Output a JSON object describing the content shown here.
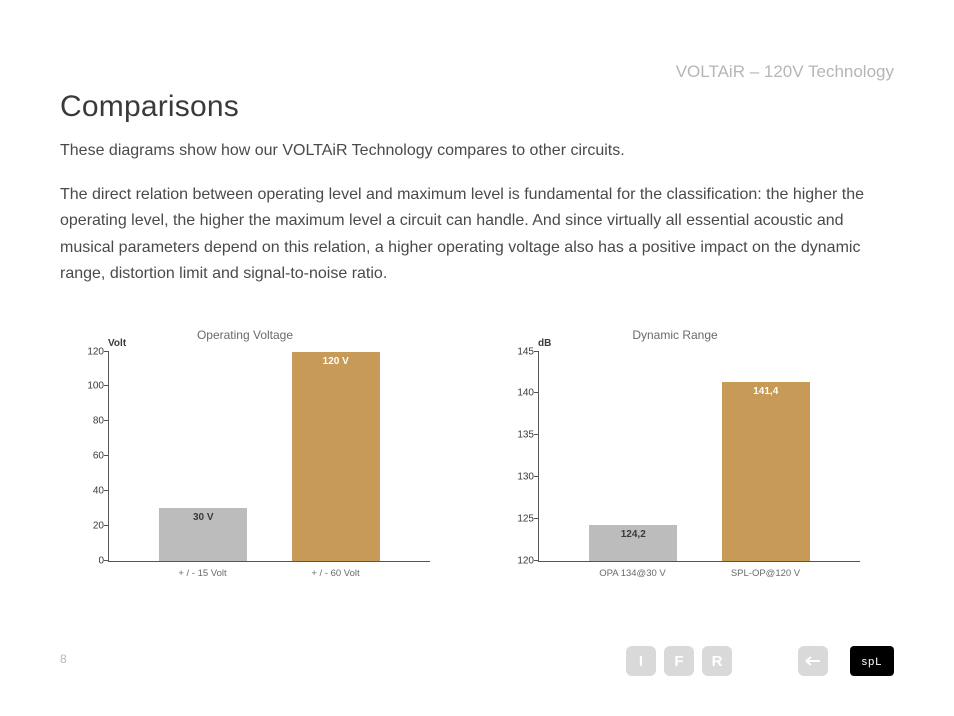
{
  "header_right": "VOLTAiR – 120V Technology",
  "title": "Comparisons",
  "intro": "These diagrams show how our VOLTAiR Technology compares to other circuits.",
  "body": "The direct relation between operating level and maximum level is fundamental for the classification: the higher the operating level, the higher the maximum level a circuit can handle. And since virtually all essential acoustic and musical parameters depend on this relation, a higher operating voltage also has a positive impact on the dynamic range, distortion limit and signal-to-noise ratio.",
  "page_number": "8",
  "chart1": {
    "type": "bar",
    "title": "Operating Voltage",
    "unit": "Volt",
    "ylim": [
      0,
      120
    ],
    "yticks": [
      0,
      20,
      40,
      60,
      80,
      100,
      120
    ],
    "bars": [
      {
        "xlabel": "+ / - 15 Volt",
        "value": 30,
        "value_label": "30 V",
        "color": "#bcbcbc",
        "text_color": "#3a3a3a"
      },
      {
        "xlabel": "+ / - 60 Volt",
        "value": 120,
        "value_label": "120 V",
        "color": "#c79a58",
        "text_color": "#ffffff"
      }
    ],
    "axis_color": "#555555",
    "background_color": "#ffffff"
  },
  "chart2": {
    "type": "bar",
    "title": "Dynamic Range",
    "unit": "dB",
    "ylim": [
      120,
      145
    ],
    "yticks": [
      120,
      125,
      130,
      135,
      140,
      145
    ],
    "bars": [
      {
        "xlabel": "OPA 134@30 V",
        "value": 124.2,
        "value_label": "124,2",
        "color": "#bcbcbc",
        "text_color": "#3a3a3a"
      },
      {
        "xlabel": "SPL-OP@120 V",
        "value": 141.4,
        "value_label": "141,4",
        "color": "#c79a58",
        "text_color": "#ffffff"
      }
    ],
    "axis_color": "#555555",
    "background_color": "#ffffff"
  },
  "footer_buttons": {
    "i": "I",
    "f": "F",
    "r": "R"
  }
}
